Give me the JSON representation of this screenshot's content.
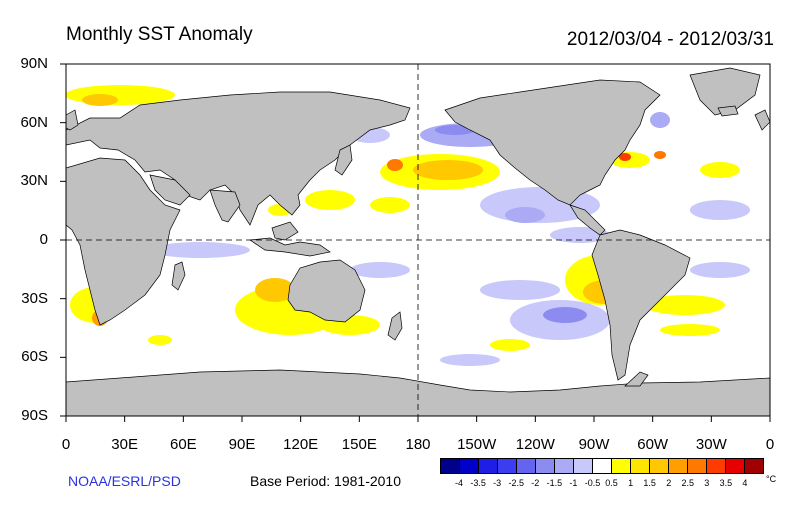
{
  "header": {
    "title": "Monthly SST Anomaly",
    "date_range": "2012/03/04 - 2012/03/31"
  },
  "axes": {
    "lat_labels": [
      "90N",
      "60N",
      "30N",
      "0",
      "30S",
      "60S",
      "90S"
    ],
    "lon_labels": [
      "0",
      "30E",
      "60E",
      "90E",
      "120E",
      "150E",
      "180",
      "150W",
      "120W",
      "90W",
      "60W",
      "30W",
      "0"
    ]
  },
  "footer": {
    "credit": "NOAA/ESRL/PSD",
    "base_period": "Base Period: 1981-2010"
  },
  "colorbar": {
    "unit": "°C",
    "labels": [
      "-4",
      "-3.5",
      "-3",
      "-2.5",
      "-2",
      "-1.5",
      "-1",
      "-0.5",
      "0.5",
      "1",
      "1.5",
      "2",
      "2.5",
      "3",
      "3.5",
      "4"
    ],
    "colors": [
      "#00008c",
      "#0000c8",
      "#1e1ee6",
      "#3c3cf0",
      "#6464f0",
      "#8c8cf0",
      "#aaaaf5",
      "#c8c8fa",
      "#ffffff",
      "#ffff00",
      "#ffe600",
      "#ffc800",
      "#ffa000",
      "#ff7800",
      "#ff3c00",
      "#e60000",
      "#a00000"
    ]
  },
  "colors": {
    "land": "#c0c0c0",
    "ocean": "#ffffff"
  }
}
